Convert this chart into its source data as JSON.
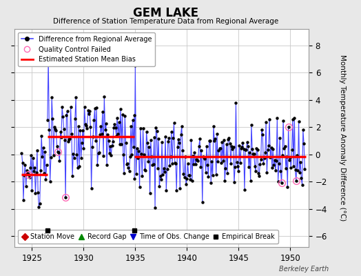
{
  "title": "GEM LAKE",
  "subtitle": "Difference of Station Temperature Data from Regional Average",
  "ylabel": "Monthly Temperature Anomaly Difference (°C)",
  "xlabel_years": [
    1925,
    1930,
    1935,
    1940,
    1945,
    1950
  ],
  "yticks": [
    -6,
    -4,
    -2,
    0,
    2,
    4,
    6,
    8
  ],
  "ylim": [
    -6.8,
    9.2
  ],
  "xlim": [
    1923.3,
    1951.8
  ],
  "background_color": "#e8e8e8",
  "plot_bg_color": "#ffffff",
  "line_color": "#4444ff",
  "dot_color": "#000000",
  "bias_color": "#ff0000",
  "qc_color": "#ff69b4",
  "segment1_start": 1924.0,
  "segment1_end": 1926.5,
  "segment1_bias": -1.5,
  "segment2_start": 1926.5,
  "segment2_end": 1934.92,
  "segment2_bias": 1.3,
  "segment3_start": 1934.92,
  "segment3_end": 1951.5,
  "segment3_bias": -0.15,
  "empirical_break_times": [
    1926.5,
    1934.92
  ],
  "empirical_break_y": -5.6,
  "watermark": "Berkeley Earth",
  "seed1": 10,
  "seed2": 20,
  "seed3": 30
}
